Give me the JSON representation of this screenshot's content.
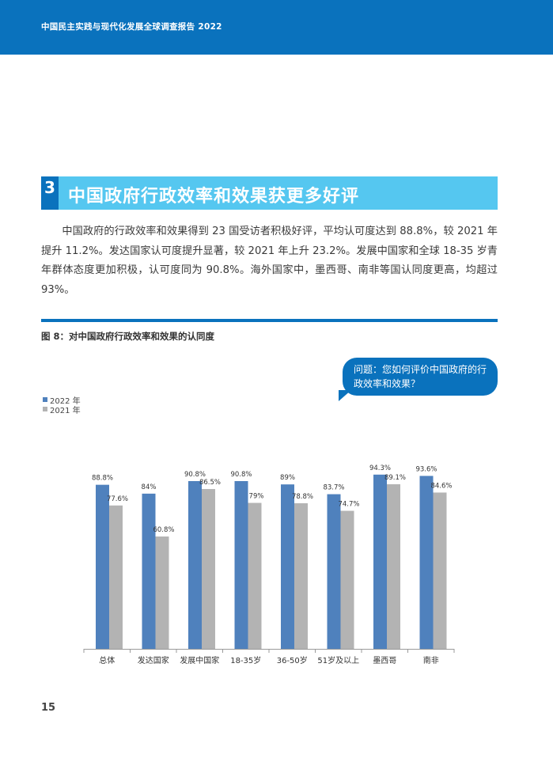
{
  "header": {
    "title": "中国民主实践与现代化发展全球调查报告 2022"
  },
  "section": {
    "number": "3",
    "title": "中国政府行政效率和效果获更多好评"
  },
  "paragraph": "中国政府的行政效率和效果得到 23 国受访者积极好评，平均认可度达到 88.8%，较 2021 年提升 11.2%。发达国家认可度提升显著，较 2021 年上升 23.2%。发展中国家和全球 18-35 岁青年群体态度更加积极，认可度同为 90.8%。海外国家中，墨西哥、南非等国认同度更高，均超过 93%。",
  "figure": {
    "caption": "图 8：对中国政府行政效率和效果的认同度",
    "question": "问题：您如何评价中国政府的行政效率和效果？"
  },
  "colors": {
    "primary": "#0a72bd",
    "accent": "#55c7f0",
    "series_2022": "#4f81bd",
    "series_2021": "#b3b3b3"
  },
  "chart_data": {
    "type": "bar",
    "categories": [
      "总体",
      "发达国家",
      "发展中国家",
      "18-35岁",
      "36-50岁",
      "51岁及以上",
      "墨西哥",
      "南非"
    ],
    "series": [
      {
        "name": "2022 年",
        "values": [
          88.8,
          84,
          90.8,
          90.8,
          89,
          83.7,
          94.3,
          93.6
        ],
        "labels": [
          "88.8%",
          "84%",
          "90.8%",
          "90.8%",
          "89%",
          "83.7%",
          "94.3%",
          "93.6%"
        ]
      },
      {
        "name": "2021 年",
        "values": [
          77.6,
          60.8,
          86.5,
          79,
          78.8,
          74.7,
          89.1,
          84.6
        ],
        "labels": [
          "77.6%",
          "60.8%",
          "86.5%",
          "79%",
          "78.8%",
          "74.7%",
          "89.1%",
          "84.6%"
        ]
      }
    ],
    "ylim": [
      0,
      100
    ],
    "legend_position": "top-left",
    "grid": false
  },
  "page_number": "15"
}
